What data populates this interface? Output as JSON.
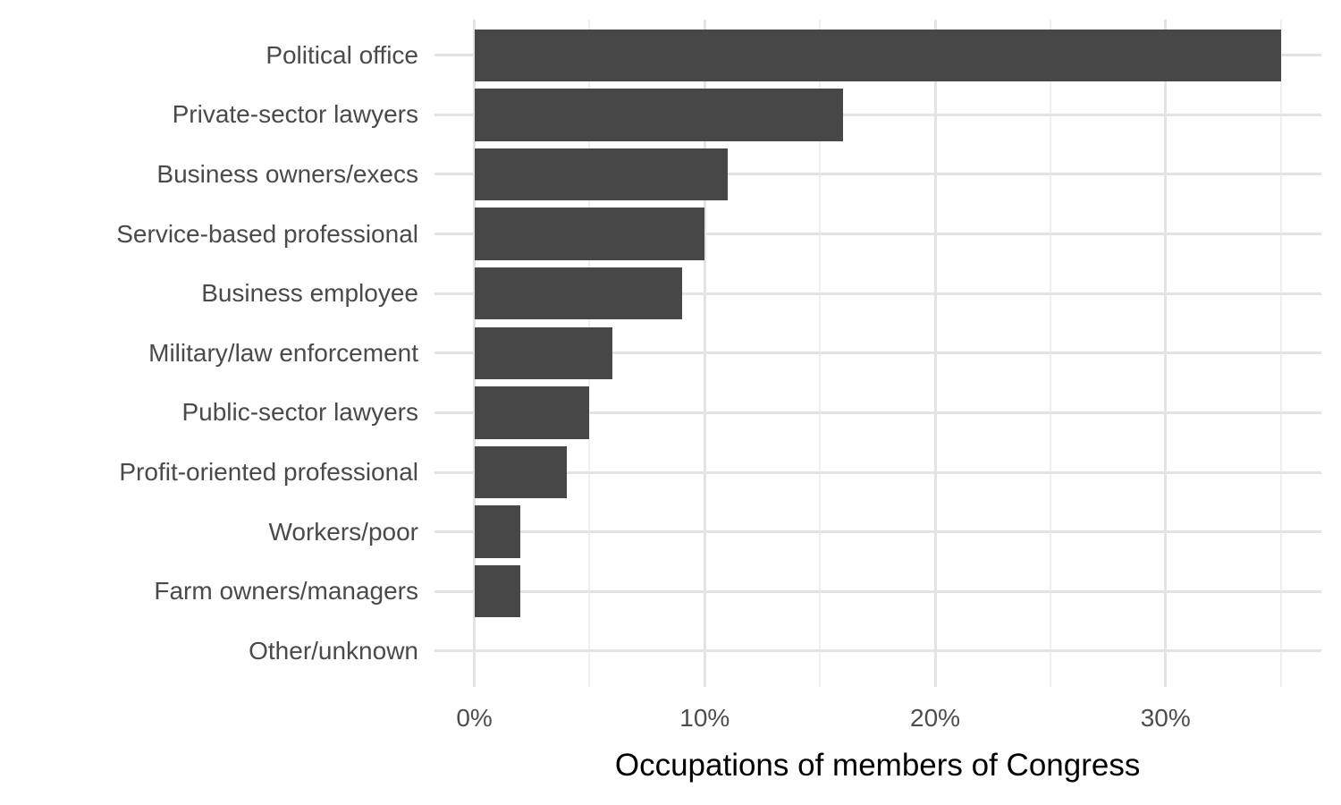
{
  "chart_data": {
    "type": "bar",
    "orientation": "horizontal",
    "title": "",
    "xlabel": "Occupations of members of Congress",
    "ylabel": "",
    "categories": [
      "Political office",
      "Private-sector lawyers",
      "Business owners/execs",
      "Service-based professional",
      "Business employee",
      "Military/law enforcement",
      "Public-sector lawyers",
      "Profit-oriented professional",
      "Workers/poor",
      "Farm owners/managers",
      "Other/unknown"
    ],
    "values": [
      35,
      16,
      11,
      10,
      9,
      6,
      5,
      4,
      2,
      2,
      0
    ],
    "value_unit": "%",
    "xlim": [
      0,
      35
    ],
    "x_major_ticks": [
      0,
      10,
      20,
      30
    ],
    "x_major_tick_labels": [
      "0%",
      "10%",
      "20%",
      "30%"
    ],
    "x_minor_ticks": [
      5,
      15,
      25,
      35
    ],
    "grid": "on",
    "legend": "none",
    "colors": {
      "bar_fill": "#474747",
      "grid_major": "#E3E3E3",
      "grid_minor": "#EFEFEF",
      "tick_label": "#4D4D4D",
      "category_label": "#4A4A4A",
      "axis_title": "#000000",
      "background": "#FFFFFF"
    }
  }
}
